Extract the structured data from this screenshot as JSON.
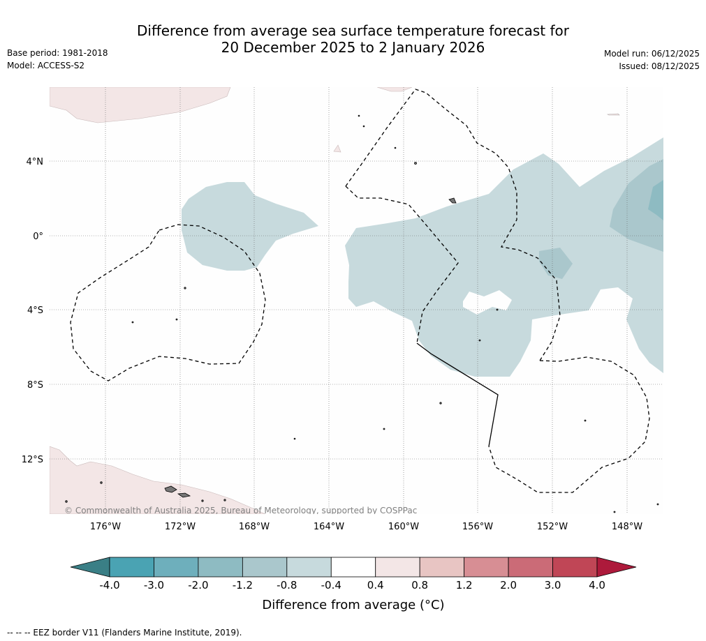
{
  "header": {
    "title_line1": "Difference from average sea surface temperature forecast for",
    "title_line2": "20 December 2025 to 2 January 2026",
    "base_period": "Base period: 1981-2018",
    "model": "Model: ACCESS-S2",
    "model_run": "Model run: 06/12/2025",
    "issued": "Issued: 08/12/2025"
  },
  "map": {
    "lon_labels": [
      "176°W",
      "172°W",
      "168°W",
      "164°W",
      "160°W",
      "156°W",
      "152°W",
      "148°W"
    ],
    "lat_labels": [
      "4°N",
      "0°",
      "4°S",
      "8°S",
      "12°S"
    ],
    "copyright": "© Commonwealth of Australia 2025, Bureau of Meteorology, supported by COSPPac"
  },
  "colorbar": {
    "ticks": [
      "-4.0",
      "-3.0",
      "-2.0",
      "-1.2",
      "-0.8",
      "-0.4",
      "0.4",
      "0.8",
      "1.2",
      "2.0",
      "3.0",
      "4.0"
    ],
    "colors": [
      "#4aa3b3",
      "#6eafbc",
      "#8ebbc2",
      "#aac7cc",
      "#c7dadd",
      "#ffffff",
      "#f3e6e6",
      "#e8c5c3",
      "#d78e94",
      "#cb6b77",
      "#c04656"
    ],
    "under_color": "#3a7f86",
    "over_color": "#ad1a3b",
    "label": "Difference from average (°C)"
  },
  "footnote": "--  --  -- EEZ border V11 (Flanders Marine Institute, 2019)."
}
